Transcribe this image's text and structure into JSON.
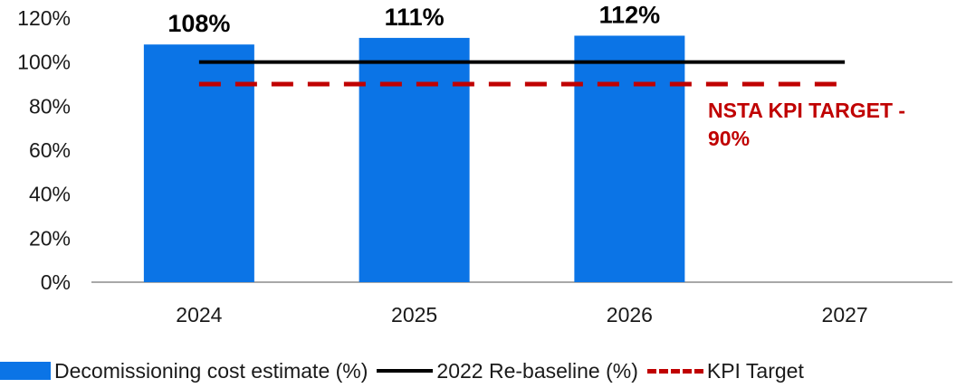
{
  "chart_data": {
    "type": "bar",
    "categories": [
      "2024",
      "2025",
      "2026",
      "2027"
    ],
    "series": [
      {
        "name": "Decomissioning cost estimate (%)",
        "kind": "bar",
        "values": [
          108,
          111,
          112,
          null
        ],
        "data_labels": [
          "108%",
          "111%",
          "112%",
          ""
        ],
        "color": "#0b74e6"
      },
      {
        "name": "2022 Re-baseline (%)",
        "kind": "line",
        "values": [
          100,
          100,
          100,
          100
        ],
        "color": "#000000"
      },
      {
        "name": "KPI Target",
        "kind": "dashed-line",
        "values": [
          90,
          90,
          90,
          90
        ],
        "color": "#c00000"
      }
    ],
    "y_ticks": [
      "0%",
      "20%",
      "40%",
      "60%",
      "80%",
      "100%",
      "120%"
    ],
    "y_tick_values": [
      0,
      20,
      40,
      60,
      80,
      100,
      120
    ],
    "ylim": [
      0,
      120
    ],
    "title": "",
    "xlabel": "",
    "ylabel": "",
    "grid": false,
    "legend_position": "bottom",
    "annotations": [
      {
        "lines": [
          "NSTA KPI TARGET -",
          "90%"
        ],
        "color": "#c00000"
      }
    ]
  }
}
